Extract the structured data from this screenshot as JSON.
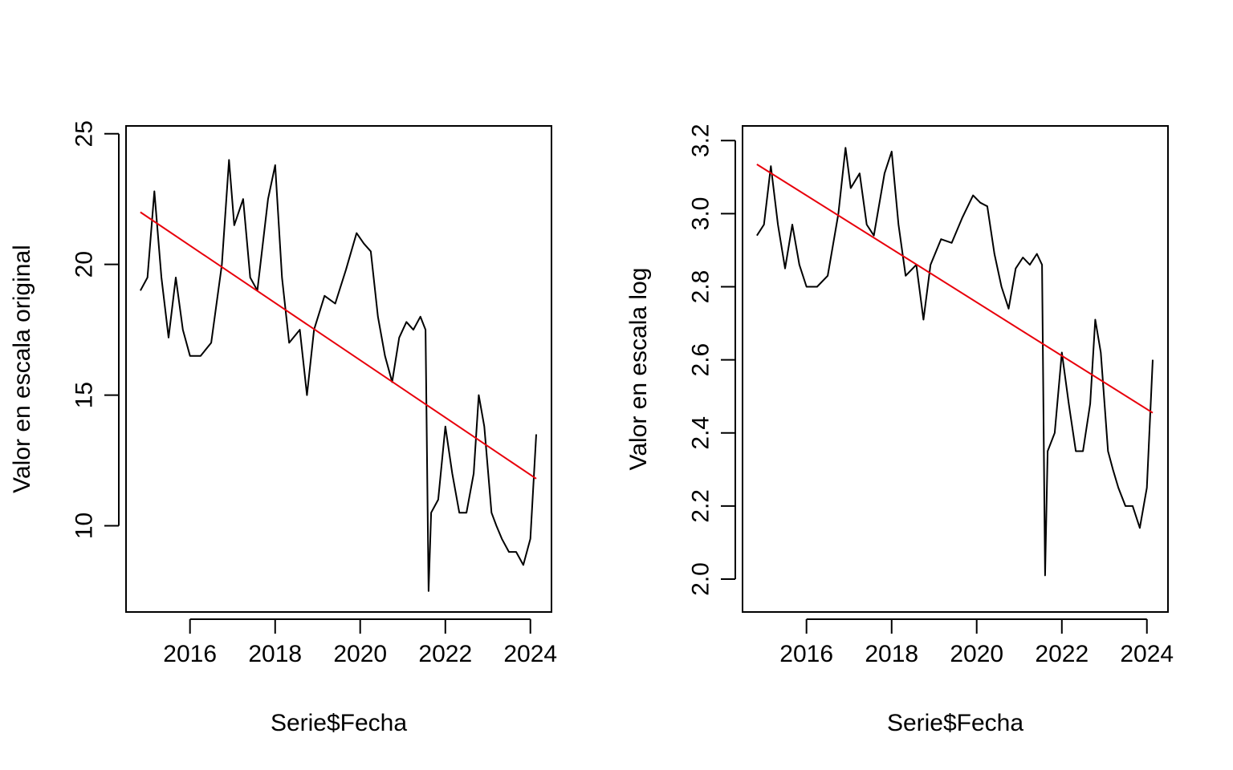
{
  "colors": {
    "series": "#000000",
    "trend": "#e8000b",
    "background": "#ffffff"
  },
  "chart_data": [
    {
      "type": "line",
      "xlabel": "Serie$Fecha",
      "ylabel": "Valor en escala original",
      "xlim": [
        "2014-07-01",
        "2024-06-30"
      ],
      "ylim": [
        6.7,
        25.3
      ],
      "x_ticks": [
        "2016",
        "2018",
        "2020",
        "2022",
        "2024"
      ],
      "y_ticks": [
        "10",
        "15",
        "20",
        "25"
      ],
      "y_tick_values": [
        10,
        15,
        20,
        25
      ],
      "grid": false,
      "series": [
        {
          "x": [
            "2014-11-01",
            "2015-01-01",
            "2015-03-01",
            "2015-05-01",
            "2015-07-01",
            "2015-09-01",
            "2015-11-01",
            "2016-01-01",
            "2016-04-01",
            "2016-07-01",
            "2016-10-01",
            "2016-12-01",
            "2017-01-15",
            "2017-04-01",
            "2017-06-01",
            "2017-08-01",
            "2017-11-01",
            "2018-01-01",
            "2018-03-01",
            "2018-05-01",
            "2018-08-01",
            "2018-10-01",
            "2018-12-01",
            "2019-03-01",
            "2019-06-01",
            "2019-09-01",
            "2019-12-01",
            "2020-02-01",
            "2020-04-01",
            "2020-06-01",
            "2020-08-01",
            "2020-10-01",
            "2020-12-01",
            "2021-02-01",
            "2021-04-01",
            "2021-06-01",
            "2021-07-15",
            "2021-08-10",
            "2021-09-01",
            "2021-11-01",
            "2022-01-01",
            "2022-03-01",
            "2022-05-01",
            "2022-07-01",
            "2022-09-01",
            "2022-10-15",
            "2022-12-01",
            "2023-02-01",
            "2023-03-15",
            "2023-05-01",
            "2023-07-01",
            "2023-09-01",
            "2023-11-01",
            "2024-01-01",
            "2024-02-20"
          ],
          "y": [
            19.0,
            19.5,
            22.8,
            19.5,
            17.2,
            19.5,
            17.5,
            16.5,
            16.5,
            17.0,
            20.0,
            24.0,
            21.5,
            22.5,
            19.5,
            19.0,
            22.5,
            23.8,
            19.5,
            17.0,
            17.5,
            15.0,
            17.5,
            18.8,
            18.5,
            19.8,
            21.2,
            20.8,
            20.5,
            18.0,
            16.5,
            15.5,
            17.2,
            17.8,
            17.5,
            18.0,
            17.5,
            7.5,
            10.5,
            11.0,
            13.8,
            12.0,
            10.5,
            10.5,
            12.0,
            15.0,
            13.8,
            10.5,
            10.0,
            9.5,
            9.0,
            9.0,
            8.5,
            9.5,
            13.5
          ]
        }
      ],
      "trend": {
        "x": [
          "2014-11-01",
          "2024-02-20"
        ],
        "y": [
          22.0,
          11.8
        ]
      }
    },
    {
      "type": "line",
      "xlabel": "Serie$Fecha",
      "ylabel": "Valor en escala log",
      "xlim": [
        "2014-07-01",
        "2024-06-30"
      ],
      "ylim": [
        1.91,
        3.24
      ],
      "x_ticks": [
        "2016",
        "2018",
        "2020",
        "2022",
        "2024"
      ],
      "y_ticks": [
        "2.0",
        "2.2",
        "2.4",
        "2.6",
        "2.8",
        "3.0",
        "3.2"
      ],
      "y_tick_values": [
        2.0,
        2.2,
        2.4,
        2.6,
        2.8,
        3.0,
        3.2
      ],
      "grid": false,
      "series": [
        {
          "x": [
            "2014-11-01",
            "2015-01-01",
            "2015-03-01",
            "2015-05-01",
            "2015-07-01",
            "2015-09-01",
            "2015-11-01",
            "2016-01-01",
            "2016-04-01",
            "2016-07-01",
            "2016-10-01",
            "2016-12-01",
            "2017-01-15",
            "2017-04-01",
            "2017-06-01",
            "2017-08-01",
            "2017-11-01",
            "2018-01-01",
            "2018-03-01",
            "2018-05-01",
            "2018-08-01",
            "2018-10-01",
            "2018-12-01",
            "2019-03-01",
            "2019-06-01",
            "2019-09-01",
            "2019-12-01",
            "2020-02-01",
            "2020-04-01",
            "2020-06-01",
            "2020-08-01",
            "2020-10-01",
            "2020-12-01",
            "2021-02-01",
            "2021-04-01",
            "2021-06-01",
            "2021-07-15",
            "2021-08-10",
            "2021-09-01",
            "2021-11-01",
            "2022-01-01",
            "2022-03-01",
            "2022-05-01",
            "2022-07-01",
            "2022-09-01",
            "2022-10-15",
            "2022-12-01",
            "2023-02-01",
            "2023-03-15",
            "2023-05-01",
            "2023-07-01",
            "2023-09-01",
            "2023-11-01",
            "2024-01-01",
            "2024-02-20"
          ],
          "y": [
            2.94,
            2.97,
            3.13,
            2.97,
            2.85,
            2.97,
            2.86,
            2.8,
            2.8,
            2.83,
            3.0,
            3.18,
            3.07,
            3.11,
            2.97,
            2.94,
            3.11,
            3.17,
            2.97,
            2.83,
            2.86,
            2.71,
            2.86,
            2.93,
            2.92,
            2.99,
            3.05,
            3.03,
            3.02,
            2.89,
            2.8,
            2.74,
            2.85,
            2.88,
            2.86,
            2.89,
            2.86,
            2.01,
            2.35,
            2.4,
            2.62,
            2.48,
            2.35,
            2.35,
            2.48,
            2.71,
            2.62,
            2.35,
            2.3,
            2.25,
            2.2,
            2.2,
            2.14,
            2.25,
            2.6
          ]
        }
      ],
      "trend": {
        "x": [
          "2014-11-01",
          "2024-02-20"
        ],
        "y": [
          3.135,
          2.455
        ]
      }
    }
  ]
}
